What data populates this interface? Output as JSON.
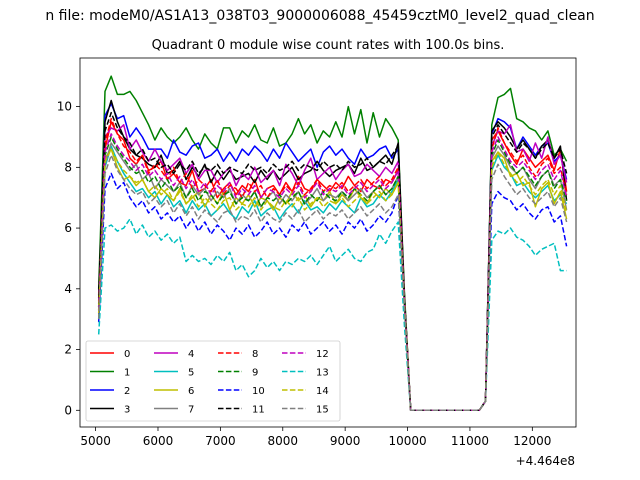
{
  "suptitle": "n file: modeM0/AS1A13_038T03_9000006088_45459cztM0_level2_quad_clean",
  "chart_data": {
    "type": "line",
    "title": "Quadrant 0 module wise count rates with 100.0s bins.",
    "xlabel": "",
    "ylabel": "",
    "x_offset_label": "+4.464e8",
    "xlim": [
      4750,
      12700
    ],
    "ylim": [
      -0.55,
      11.6
    ],
    "xticks": [
      "5000",
      "6000",
      "7000",
      "8000",
      "9000",
      "10000",
      "11000",
      "12000"
    ],
    "yticks": [
      "0",
      "2",
      "4",
      "6",
      "8",
      "10"
    ],
    "grid": false,
    "legend_position": "lower-left",
    "x": [
      5050,
      5150,
      5250,
      5350,
      5450,
      5550,
      5650,
      5750,
      5850,
      5950,
      6050,
      6150,
      6250,
      6350,
      6450,
      6550,
      6650,
      6750,
      6850,
      6950,
      7050,
      7150,
      7250,
      7350,
      7450,
      7550,
      7650,
      7750,
      7850,
      7950,
      8050,
      8150,
      8250,
      8350,
      8450,
      8550,
      8650,
      8750,
      8850,
      8950,
      9050,
      9150,
      9250,
      9350,
      9450,
      9550,
      9650,
      9750,
      9850,
      9950,
      10050,
      11150,
      11250,
      11350,
      11450,
      11550,
      11650,
      11750,
      11850,
      11950,
      12050,
      12150,
      12250,
      12350,
      12450,
      12550
    ],
    "series": [
      {
        "name": "0",
        "color": "#ff0000",
        "dash": "solid",
        "values": [
          3.6,
          8.6,
          9.5,
          9.1,
          8.9,
          8.3,
          8.1,
          8.4,
          7.9,
          8.0,
          8.2,
          7.6,
          7.8,
          7.5,
          7.4,
          7.9,
          7.2,
          7.3,
          7.6,
          7.0,
          7.3,
          7.5,
          7.1,
          7.4,
          7.2,
          7.6,
          7.0,
          7.3,
          7.4,
          7.1,
          7.5,
          7.2,
          7.7,
          7.3,
          7.2,
          7.6,
          7.4,
          7.2,
          7.5,
          7.3,
          7.7,
          7.4,
          7.2,
          7.6,
          7.4,
          7.3,
          7.6,
          7.5,
          7.9,
          3.5,
          0.0,
          0.0,
          0.3,
          8.9,
          9.2,
          8.8,
          8.4,
          8.1,
          8.6,
          8.3,
          8.0,
          8.2,
          8.4,
          7.9,
          8.6,
          7.2
        ]
      },
      {
        "name": "1",
        "color": "#008000",
        "dash": "solid",
        "values": [
          4.0,
          10.5,
          11.0,
          10.4,
          10.4,
          10.5,
          10.2,
          9.8,
          9.4,
          8.9,
          9.3,
          9.0,
          8.8,
          9.0,
          9.3,
          8.9,
          8.6,
          9.1,
          8.8,
          8.6,
          9.3,
          9.3,
          8.8,
          9.2,
          9.0,
          9.4,
          8.9,
          8.8,
          9.3,
          8.7,
          8.8,
          9.1,
          9.6,
          9.1,
          9.4,
          8.8,
          9.2,
          9.0,
          9.5,
          9.0,
          10.0,
          9.1,
          9.9,
          8.8,
          9.8,
          9.0,
          9.6,
          9.3,
          8.9,
          3.9,
          0.0,
          0.0,
          0.3,
          9.4,
          10.3,
          10.4,
          10.6,
          9.6,
          9.5,
          9.3,
          9.2,
          8.9,
          9.2,
          8.4,
          8.6,
          8.2
        ]
      },
      {
        "name": "2",
        "color": "#0000ff",
        "dash": "solid",
        "values": [
          3.4,
          9.7,
          10.1,
          9.6,
          9.7,
          9.0,
          9.3,
          9.0,
          8.6,
          8.6,
          8.6,
          8.3,
          8.9,
          8.5,
          8.4,
          8.7,
          8.8,
          8.3,
          8.4,
          8.6,
          8.2,
          8.5,
          8.2,
          8.6,
          8.4,
          8.7,
          8.5,
          8.2,
          8.6,
          8.3,
          8.8,
          8.5,
          8.2,
          8.4,
          8.6,
          8.0,
          8.5,
          8.7,
          8.4,
          8.6,
          8.3,
          8.1,
          8.6,
          8.3,
          8.4,
          8.6,
          8.7,
          8.3,
          8.6,
          3.6,
          0.0,
          0.0,
          0.3,
          9.1,
          9.6,
          9.5,
          9.3,
          8.6,
          9.0,
          8.7,
          8.4,
          8.7,
          8.8,
          8.2,
          8.4,
          7.6
        ]
      },
      {
        "name": "3",
        "color": "#000000",
        "dash": "solid",
        "values": [
          3.8,
          9.5,
          10.2,
          9.5,
          9.0,
          8.6,
          8.4,
          8.3,
          8.1,
          8.0,
          8.4,
          7.8,
          7.9,
          8.2,
          7.6,
          8.0,
          7.7,
          8.1,
          7.5,
          7.9,
          7.6,
          7.9,
          7.6,
          7.7,
          7.8,
          7.5,
          7.9,
          7.6,
          7.9,
          7.6,
          7.8,
          8.0,
          7.6,
          7.8,
          7.9,
          8.2,
          7.9,
          7.7,
          7.9,
          8.0,
          8.1,
          7.8,
          8.3,
          7.9,
          8.0,
          8.2,
          8.4,
          8.1,
          8.8,
          3.7,
          0.0,
          0.0,
          0.3,
          9.2,
          9.5,
          9.3,
          9.0,
          8.6,
          8.9,
          8.6,
          8.3,
          8.7,
          8.9,
          8.3,
          8.7,
          6.9
        ]
      },
      {
        "name": "4",
        "color": "#bf00bf",
        "dash": "solid",
        "values": [
          3.3,
          9.0,
          9.3,
          9.2,
          9.4,
          8.6,
          8.9,
          8.5,
          8.2,
          8.6,
          8.2,
          7.9,
          8.1,
          8.3,
          7.8,
          8.1,
          7.6,
          7.9,
          7.9,
          7.5,
          7.8,
          8.0,
          7.4,
          7.8,
          7.6,
          8.0,
          7.5,
          7.7,
          7.9,
          7.4,
          8.1,
          7.8,
          7.4,
          7.9,
          8.3,
          7.6,
          7.8,
          8.0,
          7.6,
          7.9,
          8.1,
          7.7,
          7.8,
          8.1,
          7.9,
          7.7,
          8.0,
          7.8,
          8.2,
          3.6,
          0.0,
          0.0,
          0.3,
          8.7,
          9.2,
          9.1,
          9.4,
          8.5,
          8.6,
          8.2,
          8.8,
          8.3,
          9.0,
          8.1,
          8.4,
          7.5
        ]
      },
      {
        "name": "5",
        "color": "#00bfbf",
        "dash": "solid",
        "values": [
          3.0,
          8.0,
          8.7,
          8.2,
          7.8,
          7.5,
          7.2,
          7.3,
          7.0,
          7.2,
          6.8,
          7.1,
          6.7,
          6.9,
          6.5,
          6.9,
          6.6,
          6.8,
          6.4,
          6.6,
          6.8,
          6.5,
          6.3,
          6.7,
          6.5,
          6.9,
          6.4,
          6.6,
          6.7,
          6.3,
          6.6,
          6.8,
          6.5,
          6.9,
          6.6,
          6.7,
          6.5,
          6.8,
          6.6,
          6.9,
          6.7,
          6.5,
          7.0,
          6.7,
          6.8,
          7.1,
          6.9,
          7.2,
          7.6,
          3.5,
          0.0,
          0.0,
          0.3,
          7.9,
          8.4,
          8.0,
          7.8,
          7.4,
          7.5,
          7.2,
          7.0,
          7.2,
          7.4,
          6.9,
          7.1,
          6.8
        ]
      },
      {
        "name": "6",
        "color": "#bfbf00",
        "dash": "solid",
        "values": [
          3.1,
          8.3,
          8.6,
          8.0,
          7.6,
          7.7,
          7.4,
          7.6,
          7.2,
          7.0,
          7.3,
          7.1,
          6.9,
          7.3,
          6.8,
          7.0,
          7.2,
          6.7,
          7.1,
          6.8,
          7.2,
          6.6,
          7.0,
          6.8,
          7.1,
          6.7,
          7.0,
          6.9,
          6.6,
          7.0,
          6.8,
          7.2,
          6.9,
          7.1,
          6.7,
          7.0,
          6.9,
          7.2,
          6.8,
          7.1,
          6.9,
          7.3,
          7.0,
          6.8,
          7.2,
          7.0,
          7.3,
          7.1,
          7.5,
          3.5,
          0.0,
          0.0,
          0.3,
          8.2,
          8.5,
          8.3,
          7.7,
          7.8,
          7.4,
          7.5,
          6.7,
          7.3,
          7.5,
          6.8,
          7.2,
          6.3
        ]
      },
      {
        "name": "7",
        "color": "#808080",
        "dash": "solid",
        "values": [
          3.2,
          8.1,
          8.8,
          8.5,
          8.2,
          7.9,
          8.1,
          7.6,
          7.8,
          7.3,
          7.6,
          7.4,
          7.2,
          7.5,
          7.0,
          7.4,
          7.1,
          7.3,
          6.9,
          7.2,
          7.0,
          7.3,
          6.8,
          7.1,
          6.9,
          7.2,
          6.7,
          7.0,
          7.2,
          6.8,
          7.1,
          6.9,
          7.2,
          6.8,
          7.0,
          7.3,
          6.9,
          7.1,
          7.0,
          7.2,
          6.9,
          7.1,
          7.3,
          7.0,
          7.2,
          7.4,
          7.1,
          7.3,
          7.7,
          3.6,
          0.0,
          0.0,
          0.3,
          8.3,
          8.7,
          8.4,
          8.0,
          7.8,
          8.0,
          7.6,
          7.3,
          7.7,
          7.9,
          7.4,
          7.6,
          6.6
        ]
      },
      {
        "name": "8",
        "color": "#ff0000",
        "dash": "dashed",
        "values": [
          3.5,
          8.8,
          9.6,
          9.1,
          8.7,
          8.5,
          8.2,
          8.4,
          7.8,
          8.1,
          7.9,
          7.6,
          8.0,
          7.5,
          7.8,
          7.3,
          7.6,
          7.4,
          7.2,
          7.6,
          7.1,
          7.4,
          7.3,
          7.0,
          7.5,
          7.2,
          7.4,
          7.0,
          7.3,
          7.1,
          7.4,
          7.2,
          7.5,
          7.1,
          7.3,
          7.6,
          7.2,
          7.4,
          7.3,
          7.5,
          7.2,
          7.4,
          7.6,
          7.3,
          7.5,
          7.7,
          7.4,
          7.6,
          8.0,
          3.7,
          0.0,
          0.0,
          0.3,
          8.6,
          9.3,
          8.8,
          8.5,
          8.2,
          8.4,
          8.0,
          7.7,
          8.1,
          8.3,
          7.8,
          8.0,
          7.1
        ]
      },
      {
        "name": "9",
        "color": "#008000",
        "dash": "dashed",
        "values": [
          3.4,
          8.4,
          9.0,
          8.6,
          8.3,
          8.0,
          7.8,
          7.9,
          7.5,
          7.7,
          7.3,
          7.6,
          7.2,
          7.4,
          7.0,
          7.3,
          6.9,
          7.2,
          7.1,
          6.8,
          7.1,
          7.2,
          6.8,
          7.0,
          6.9,
          7.2,
          6.7,
          7.0,
          6.9,
          7.1,
          6.8,
          7.0,
          7.2,
          6.8,
          7.1,
          6.9,
          7.2,
          7.0,
          6.9,
          7.2,
          7.0,
          7.3,
          7.1,
          6.9,
          7.2,
          7.4,
          7.1,
          7.3,
          7.7,
          3.6,
          0.0,
          0.0,
          0.3,
          8.4,
          8.9,
          8.5,
          8.1,
          7.8,
          8.0,
          7.7,
          7.4,
          7.7,
          7.9,
          7.3,
          7.6,
          6.9
        ]
      },
      {
        "name": "10",
        "color": "#0000ff",
        "dash": "dashed",
        "values": [
          2.9,
          7.3,
          7.8,
          7.3,
          7.5,
          7.0,
          6.7,
          6.9,
          6.5,
          6.7,
          6.3,
          6.5,
          6.2,
          6.4,
          6.0,
          6.3,
          5.9,
          6.2,
          5.8,
          6.1,
          5.9,
          5.6,
          6.0,
          5.8,
          6.1,
          5.7,
          5.9,
          6.2,
          5.8,
          6.0,
          5.7,
          6.1,
          5.9,
          6.2,
          5.8,
          6.0,
          6.2,
          5.9,
          6.1,
          5.8,
          6.2,
          6.0,
          6.3,
          5.9,
          6.1,
          6.4,
          6.2,
          6.5,
          7.1,
          3.3,
          0.0,
          0.0,
          0.3,
          6.8,
          7.2,
          7.0,
          6.9,
          6.6,
          6.8,
          6.5,
          6.3,
          6.6,
          6.7,
          6.2,
          6.4,
          5.4
        ]
      },
      {
        "name": "11",
        "color": "#000000",
        "dash": "dashed",
        "values": [
          3.7,
          9.2,
          9.8,
          9.3,
          9.0,
          8.8,
          8.4,
          8.6,
          8.2,
          8.3,
          8.0,
          8.1,
          7.8,
          8.1,
          7.9,
          8.2,
          7.8,
          8.0,
          7.9,
          8.1,
          7.8,
          8.0,
          7.9,
          7.8,
          8.1,
          7.9,
          8.0,
          7.8,
          8.1,
          7.9,
          8.0,
          8.2,
          7.9,
          8.1,
          8.0,
          7.9,
          8.2,
          8.0,
          8.1,
          7.9,
          8.2,
          8.0,
          8.1,
          8.3,
          8.0,
          8.2,
          8.1,
          8.4,
          8.7,
          3.8,
          0.0,
          0.0,
          0.3,
          9.0,
          9.4,
          9.1,
          8.8,
          8.5,
          8.8,
          8.6,
          8.3,
          8.6,
          8.8,
          8.3,
          8.6,
          7.8
        ]
      },
      {
        "name": "12",
        "color": "#bf00bf",
        "dash": "dashed",
        "values": [
          3.3,
          8.5,
          9.1,
          8.7,
          8.4,
          8.2,
          7.9,
          8.1,
          7.7,
          7.9,
          7.6,
          7.8,
          7.4,
          7.7,
          7.3,
          7.6,
          7.2,
          7.5,
          7.1,
          7.4,
          7.2,
          7.5,
          7.0,
          7.3,
          7.1,
          7.4,
          7.0,
          7.3,
          7.2,
          7.0,
          7.3,
          7.1,
          7.4,
          7.0,
          7.2,
          7.5,
          7.1,
          7.3,
          7.2,
          7.4,
          7.1,
          7.3,
          7.5,
          7.2,
          7.4,
          7.6,
          7.3,
          7.5,
          7.9,
          3.6,
          0.0,
          0.0,
          0.3,
          8.5,
          9.0,
          8.6,
          8.2,
          8.0,
          8.2,
          7.9,
          7.6,
          7.9,
          8.1,
          7.6,
          7.9,
          7.0
        ]
      },
      {
        "name": "13",
        "color": "#00bfbf",
        "dash": "dashed",
        "values": [
          2.5,
          6.0,
          6.1,
          5.9,
          6.0,
          6.3,
          5.8,
          6.1,
          5.7,
          5.9,
          5.6,
          5.8,
          5.5,
          5.7,
          4.9,
          5.1,
          4.9,
          5.0,
          4.8,
          5.1,
          4.9,
          5.2,
          4.6,
          4.8,
          4.4,
          4.6,
          5.0,
          4.7,
          4.9,
          4.6,
          4.9,
          4.8,
          5.0,
          4.9,
          5.1,
          4.8,
          5.1,
          5.4,
          4.9,
          5.1,
          5.3,
          5.0,
          4.9,
          5.2,
          5.3,
          5.8,
          5.5,
          5.9,
          6.2,
          2.8,
          0.0,
          0.0,
          0.3,
          5.6,
          5.9,
          5.8,
          6.0,
          5.7,
          5.6,
          5.4,
          5.1,
          5.3,
          5.4,
          5.5,
          4.6,
          4.6
        ]
      },
      {
        "name": "14",
        "color": "#bfbf00",
        "dash": "dashed",
        "values": [
          3.2,
          8.2,
          8.6,
          8.2,
          7.9,
          7.7,
          7.5,
          7.6,
          7.2,
          7.4,
          7.1,
          7.3,
          6.9,
          7.2,
          6.8,
          7.1,
          6.7,
          7.0,
          6.8,
          6.6,
          6.9,
          7.0,
          6.6,
          6.8,
          6.7,
          7.0,
          6.6,
          6.9,
          6.7,
          6.6,
          6.9,
          6.7,
          7.0,
          6.6,
          6.8,
          7.0,
          6.7,
          6.9,
          6.8,
          7.0,
          6.7,
          6.9,
          7.1,
          6.8,
          7.0,
          7.2,
          6.9,
          7.1,
          7.5,
          3.5,
          0.0,
          0.0,
          0.3,
          8.0,
          8.5,
          8.1,
          7.8,
          7.5,
          7.7,
          7.4,
          7.1,
          7.4,
          7.6,
          7.1,
          7.4,
          6.5
        ]
      },
      {
        "name": "15",
        "color": "#808080",
        "dash": "dashed",
        "values": [
          3.0,
          7.8,
          8.4,
          7.9,
          7.6,
          7.3,
          7.1,
          7.2,
          6.8,
          7.0,
          6.7,
          6.9,
          6.5,
          6.8,
          6.4,
          6.7,
          6.3,
          6.6,
          6.4,
          6.2,
          6.5,
          6.6,
          6.2,
          6.4,
          6.3,
          6.6,
          6.2,
          6.5,
          6.3,
          6.2,
          6.5,
          6.3,
          6.6,
          6.2,
          6.4,
          6.6,
          6.3,
          6.5,
          6.4,
          6.6,
          6.3,
          6.5,
          6.7,
          6.4,
          6.6,
          6.8,
          6.5,
          6.7,
          7.1,
          3.4,
          0.0,
          0.0,
          0.3,
          7.6,
          8.1,
          7.7,
          7.4,
          7.1,
          7.3,
          7.0,
          6.8,
          7.0,
          7.2,
          6.7,
          7.0,
          6.2
        ]
      }
    ]
  }
}
